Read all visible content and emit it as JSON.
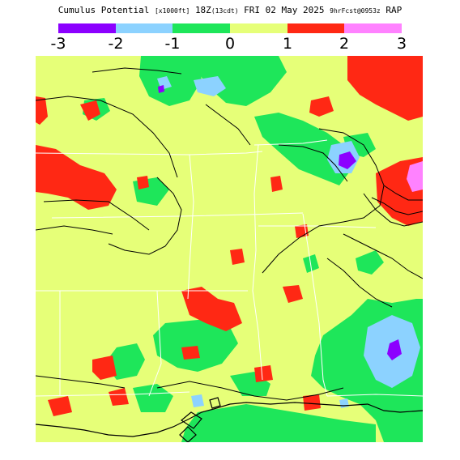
{
  "header": {
    "product": "Cumulus Potential",
    "units": "[x1000ft]",
    "valid_hour": "18Z",
    "local_time": "(13cdt)",
    "valid_date": "FRI 02 May 2025",
    "forecast": "9hrFcst@0953z",
    "model": "RAP"
  },
  "legend": {
    "bins": [
      {
        "range": "-3 to -2",
        "color": "#8c00ff"
      },
      {
        "range": "-2 to -1",
        "color": "#8cd2ff"
      },
      {
        "range": "-1 to 0",
        "color": "#1ee65a"
      },
      {
        "range": "0 to 1",
        "color": "#e6ff78"
      },
      {
        "range": "1 to 2",
        "color": "#ff2814"
      },
      {
        "range": "2 to 3",
        "color": "#ff82ff"
      }
    ],
    "ticks": [
      "-3",
      "-2",
      "-1",
      "0",
      "1",
      "2",
      "3"
    ]
  },
  "map": {
    "background_color": "#e6ff78",
    "contour_color": "#000000",
    "boundary_color": "#ffffff"
  }
}
